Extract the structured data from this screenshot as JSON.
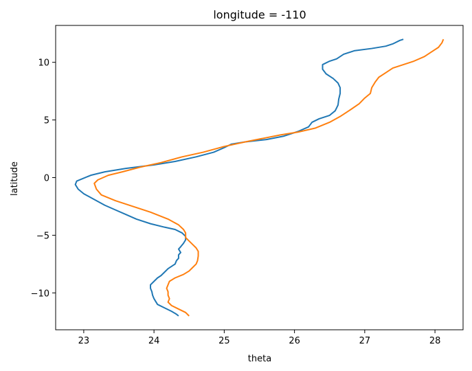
{
  "chart_data": {
    "type": "line",
    "title": "longitude = -110",
    "xlabel": "theta",
    "ylabel": "latitude",
    "xlim": [
      22.6,
      28.4
    ],
    "ylim": [
      -13.2,
      13.2
    ],
    "xticks": [
      23,
      24,
      25,
      26,
      27,
      28
    ],
    "yticks": [
      -10,
      -5,
      0,
      5,
      10
    ],
    "grid": false,
    "series": [
      {
        "color": "#1f77b4",
        "points": [
          [
            24.35,
            -12.0
          ],
          [
            24.32,
            -11.85
          ],
          [
            24.25,
            -11.6
          ],
          [
            24.15,
            -11.3
          ],
          [
            24.05,
            -11.0
          ],
          [
            24.02,
            -10.7
          ],
          [
            24.0,
            -10.5
          ],
          [
            23.98,
            -10.2
          ],
          [
            23.97,
            -9.9
          ],
          [
            23.95,
            -9.6
          ],
          [
            23.95,
            -9.3
          ],
          [
            24.0,
            -9.0
          ],
          [
            24.05,
            -8.7
          ],
          [
            24.1,
            -8.5
          ],
          [
            24.15,
            -8.2
          ],
          [
            24.2,
            -7.9
          ],
          [
            24.25,
            -7.7
          ],
          [
            24.3,
            -7.5
          ],
          [
            24.32,
            -7.2
          ],
          [
            24.35,
            -7.0
          ],
          [
            24.35,
            -6.7
          ],
          [
            24.38,
            -6.5
          ],
          [
            24.35,
            -6.2
          ],
          [
            24.38,
            -6.0
          ],
          [
            24.42,
            -5.7
          ],
          [
            24.45,
            -5.4
          ],
          [
            24.45,
            -5.1
          ],
          [
            24.4,
            -4.8
          ],
          [
            24.3,
            -4.5
          ],
          [
            24.15,
            -4.3
          ],
          [
            23.95,
            -4.0
          ],
          [
            23.75,
            -3.6
          ],
          [
            23.6,
            -3.2
          ],
          [
            23.45,
            -2.8
          ],
          [
            23.3,
            -2.4
          ],
          [
            23.15,
            -1.9
          ],
          [
            23.0,
            -1.4
          ],
          [
            22.92,
            -1.0
          ],
          [
            22.88,
            -0.6
          ],
          [
            22.9,
            -0.3
          ],
          [
            22.98,
            -0.1
          ],
          [
            23.1,
            0.2
          ],
          [
            23.3,
            0.5
          ],
          [
            23.6,
            0.8
          ],
          [
            24.0,
            1.1
          ],
          [
            24.3,
            1.4
          ],
          [
            24.6,
            1.8
          ],
          [
            24.85,
            2.2
          ],
          [
            25.0,
            2.6
          ],
          [
            25.1,
            2.9
          ],
          [
            25.3,
            3.1
          ],
          [
            25.6,
            3.3
          ],
          [
            25.85,
            3.6
          ],
          [
            26.05,
            4.0
          ],
          [
            26.2,
            4.4
          ],
          [
            26.25,
            4.8
          ],
          [
            26.35,
            5.1
          ],
          [
            26.5,
            5.4
          ],
          [
            26.58,
            5.8
          ],
          [
            26.62,
            6.3
          ],
          [
            26.63,
            6.8
          ],
          [
            26.65,
            7.3
          ],
          [
            26.65,
            7.8
          ],
          [
            26.62,
            8.2
          ],
          [
            26.55,
            8.6
          ],
          [
            26.45,
            9.0
          ],
          [
            26.4,
            9.4
          ],
          [
            26.4,
            9.8
          ],
          [
            26.5,
            10.1
          ],
          [
            26.6,
            10.3
          ],
          [
            26.7,
            10.7
          ],
          [
            26.85,
            11.0
          ],
          [
            27.1,
            11.2
          ],
          [
            27.3,
            11.4
          ],
          [
            27.4,
            11.6
          ],
          [
            27.5,
            11.9
          ],
          [
            27.55,
            12.0
          ]
        ]
      },
      {
        "color": "#ff7f0e",
        "points": [
          [
            24.5,
            -12.0
          ],
          [
            24.45,
            -11.7
          ],
          [
            24.35,
            -11.4
          ],
          [
            24.25,
            -11.1
          ],
          [
            24.2,
            -10.8
          ],
          [
            24.22,
            -10.5
          ],
          [
            24.2,
            -10.2
          ],
          [
            24.2,
            -9.9
          ],
          [
            24.18,
            -9.6
          ],
          [
            24.2,
            -9.3
          ],
          [
            24.22,
            -9.0
          ],
          [
            24.3,
            -8.7
          ],
          [
            24.42,
            -8.4
          ],
          [
            24.5,
            -8.1
          ],
          [
            24.55,
            -7.8
          ],
          [
            24.6,
            -7.5
          ],
          [
            24.62,
            -7.2
          ],
          [
            24.63,
            -6.8
          ],
          [
            24.63,
            -6.4
          ],
          [
            24.6,
            -6.1
          ],
          [
            24.55,
            -5.8
          ],
          [
            24.5,
            -5.5
          ],
          [
            24.45,
            -5.2
          ],
          [
            24.45,
            -4.8
          ],
          [
            24.42,
            -4.5
          ],
          [
            24.35,
            -4.1
          ],
          [
            24.2,
            -3.6
          ],
          [
            23.95,
            -3.0
          ],
          [
            23.7,
            -2.5
          ],
          [
            23.45,
            -2.0
          ],
          [
            23.25,
            -1.5
          ],
          [
            23.18,
            -1.0
          ],
          [
            23.15,
            -0.5
          ],
          [
            23.2,
            -0.2
          ],
          [
            23.35,
            0.2
          ],
          [
            23.55,
            0.5
          ],
          [
            23.8,
            0.9
          ],
          [
            24.1,
            1.3
          ],
          [
            24.4,
            1.8
          ],
          [
            24.7,
            2.2
          ],
          [
            25.0,
            2.7
          ],
          [
            25.3,
            3.1
          ],
          [
            25.55,
            3.4
          ],
          [
            25.8,
            3.7
          ],
          [
            26.05,
            3.95
          ],
          [
            26.3,
            4.3
          ],
          [
            26.5,
            4.8
          ],
          [
            26.65,
            5.3
          ],
          [
            26.8,
            5.9
          ],
          [
            26.92,
            6.4
          ],
          [
            27.0,
            6.9
          ],
          [
            27.08,
            7.3
          ],
          [
            27.1,
            7.8
          ],
          [
            27.15,
            8.3
          ],
          [
            27.2,
            8.7
          ],
          [
            27.3,
            9.1
          ],
          [
            27.4,
            9.5
          ],
          [
            27.55,
            9.8
          ],
          [
            27.7,
            10.1
          ],
          [
            27.85,
            10.5
          ],
          [
            27.95,
            10.9
          ],
          [
            28.05,
            11.3
          ],
          [
            28.1,
            11.7
          ],
          [
            28.12,
            12.0
          ]
        ]
      }
    ]
  }
}
